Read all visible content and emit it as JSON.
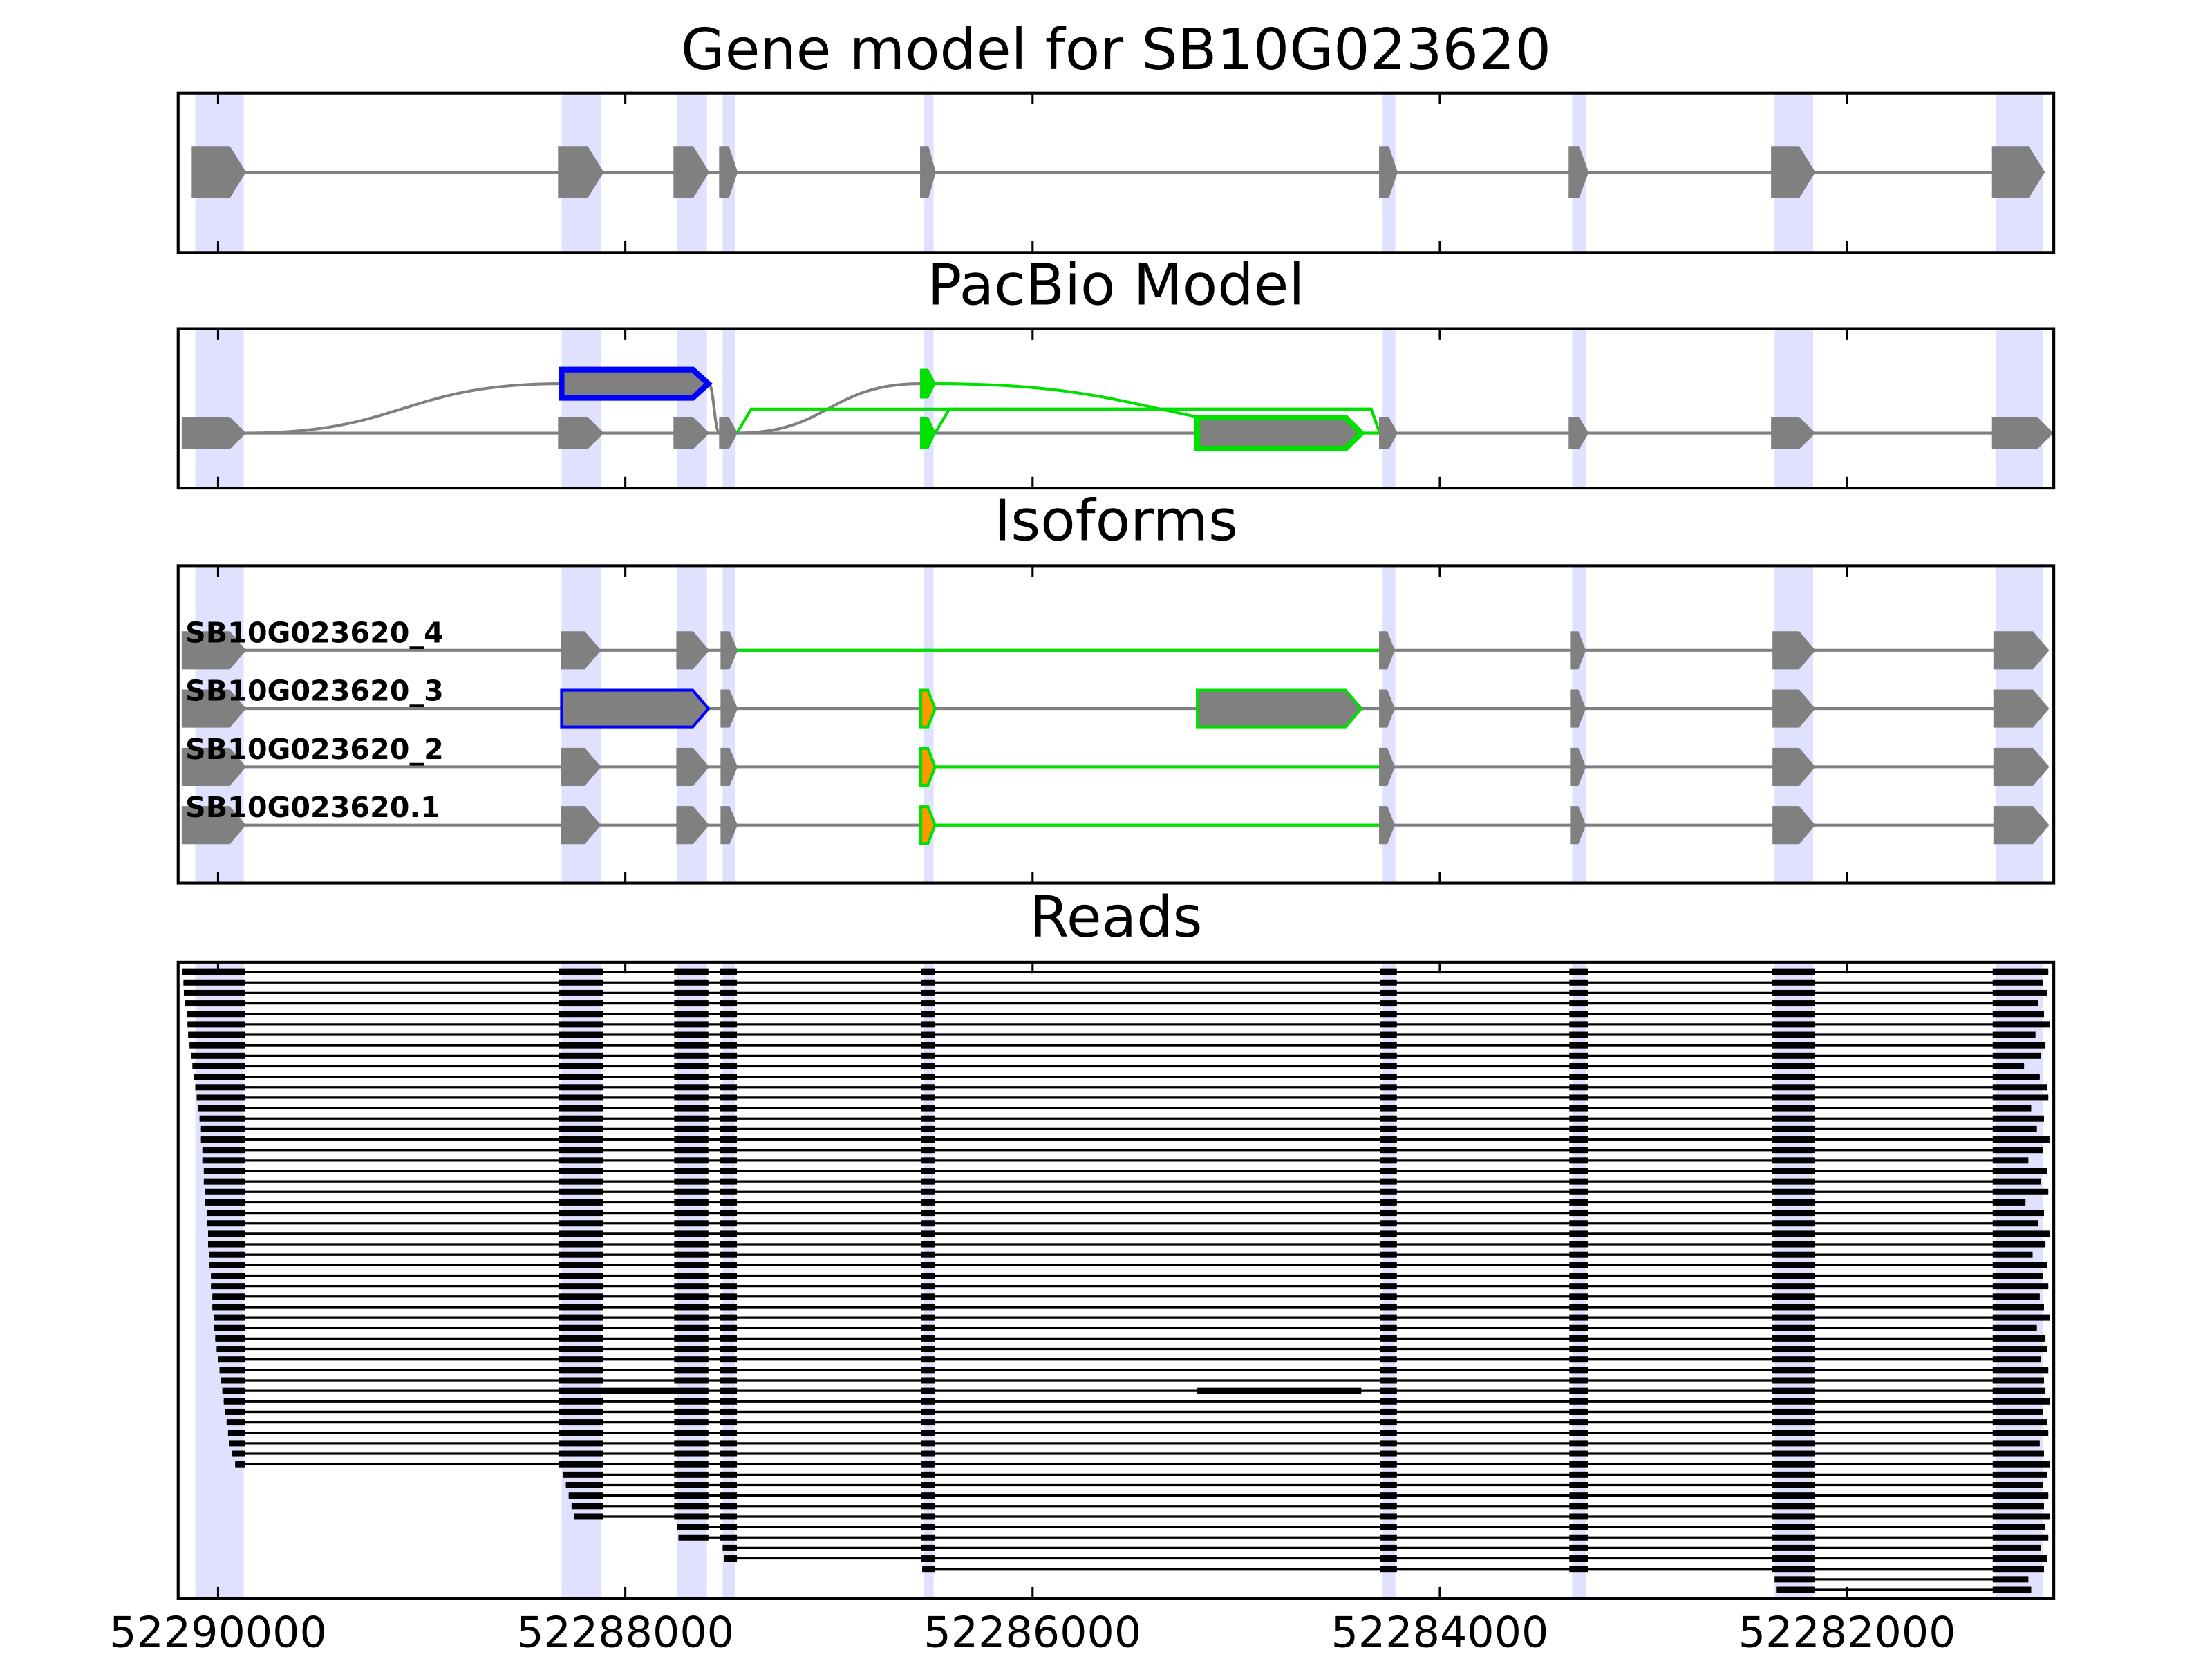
{
  "chart_data": {
    "type": "gene_track",
    "xlim": [
      52290196,
      52280985
    ],
    "xticks": [
      52290000,
      52288000,
      52286000,
      52284000,
      52282000
    ],
    "exon_color": "#808080",
    "band_color": "#e0e0ff",
    "read_color": "#000000",
    "gene_model": {
      "title": "Gene model for SB10G023620",
      "exons": [
        {
          "start": 52290126,
          "end": 52289867
        },
        {
          "start": 52288327,
          "end": 52288110
        },
        {
          "start": 52287760,
          "end": 52287592
        },
        {
          "start": 52287536,
          "end": 52287452
        },
        {
          "start": 52286549,
          "end": 52286479
        },
        {
          "start": 52284295,
          "end": 52284211
        },
        {
          "start": 52283364,
          "end": 52283273
        },
        {
          "start": 52282370,
          "end": 52282160
        },
        {
          "start": 52281285,
          "end": 52281033
        }
      ]
    },
    "pacbio": {
      "title": "PacBio Model",
      "exons": [
        {
          "start": 52290175,
          "end": 52289867,
          "row": 0
        },
        {
          "start": 52288327,
          "end": 52288110,
          "row": 0
        },
        {
          "start": 52287760,
          "end": 52287592,
          "row": 0
        },
        {
          "start": 52287536,
          "end": 52287452,
          "row": 0
        },
        {
          "start": 52286549,
          "end": 52286479,
          "row": 0,
          "fill": "#00e000",
          "edge": "#00e000"
        },
        {
          "start": 52285191,
          "end": 52284386,
          "row": 0,
          "edge": "#00e000"
        },
        {
          "start": 52284295,
          "end": 52284211,
          "row": 0
        },
        {
          "start": 52283364,
          "end": 52283273,
          "row": 0
        },
        {
          "start": 52282370,
          "end": 52282160,
          "row": 0
        },
        {
          "start": 52281285,
          "end": 52280991,
          "row": 0
        },
        {
          "start": 52288313,
          "end": 52287592,
          "row": 1,
          "edge": "#0000ff"
        },
        {
          "start": 52286549,
          "end": 52286479,
          "row": 1,
          "fill": "#00e000",
          "edge": "#00e000"
        }
      ],
      "junctions": [
        {
          "from": 52289867,
          "from_row": 0,
          "to": 52288313,
          "to_row": 1,
          "color": "#808080"
        },
        {
          "from": 52287592,
          "from_row": 1,
          "to": 52287536,
          "to_row": 0,
          "color": "#808080"
        },
        {
          "from": 52287452,
          "from_row": 0,
          "to": 52286549,
          "to_row": 1,
          "color": "#808080"
        },
        {
          "from": 52286479,
          "from_row": 1,
          "to": 52284295,
          "to_row": 0,
          "color": "#00e000"
        },
        {
          "from": 52287452,
          "from_row": 0,
          "to": 52284295,
          "to_row": 0,
          "color": "#00e000"
        },
        {
          "from": 52286479,
          "from_row": 0,
          "to": 52284295,
          "to_row": 0,
          "color": "#00e000"
        }
      ]
    },
    "isoforms": {
      "title": "Isoforms",
      "novel_color": "#00e000",
      "items": [
        {
          "name": "SB10G023620_4",
          "exons": [
            {
              "start": 52290175,
              "end": 52289867
            },
            {
              "start": 52288313,
              "end": 52288124
            },
            {
              "start": 52287746,
              "end": 52287592
            },
            {
              "start": 52287529,
              "end": 52287452
            },
            {
              "start": 52284295,
              "end": 52284225
            },
            {
              "start": 52283357,
              "end": 52283287
            },
            {
              "start": 52282363,
              "end": 52282160
            },
            {
              "start": 52281278,
              "end": 52281012
            }
          ],
          "novel": [
            [
              52287452,
              52284295
            ]
          ]
        },
        {
          "name": "SB10G023620_3",
          "exons": [
            {
              "start": 52290175,
              "end": 52289867
            },
            {
              "start": 52288313,
              "end": 52287592,
              "edge": "#0000ff"
            },
            {
              "start": 52287529,
              "end": 52287452
            },
            {
              "start": 52286549,
              "end": 52286479,
              "fill": "#ff9900",
              "edge": "#00e000"
            },
            {
              "start": 52285191,
              "end": 52284386,
              "edge": "#00e000"
            },
            {
              "start": 52284295,
              "end": 52284225
            },
            {
              "start": 52283357,
              "end": 52283287
            },
            {
              "start": 52282363,
              "end": 52282160
            },
            {
              "start": 52281278,
              "end": 52281012
            }
          ],
          "novel": []
        },
        {
          "name": "SB10G023620_2",
          "exons": [
            {
              "start": 52290175,
              "end": 52289867
            },
            {
              "start": 52288313,
              "end": 52288124
            },
            {
              "start": 52287746,
              "end": 52287592
            },
            {
              "start": 52287529,
              "end": 52287452
            },
            {
              "start": 52286549,
              "end": 52286479,
              "fill": "#ff9900",
              "edge": "#00e000"
            },
            {
              "start": 52284295,
              "end": 52284225
            },
            {
              "start": 52283357,
              "end": 52283287
            },
            {
              "start": 52282363,
              "end": 52282160
            },
            {
              "start": 52281278,
              "end": 52281012
            }
          ],
          "novel": [
            [
              52286479,
              52284295
            ]
          ]
        },
        {
          "name": "SB10G023620.1",
          "exons": [
            {
              "start": 52290175,
              "end": 52289867
            },
            {
              "start": 52288313,
              "end": 52288124
            },
            {
              "start": 52287746,
              "end": 52287592
            },
            {
              "start": 52287529,
              "end": 52287452
            },
            {
              "start": 52286549,
              "end": 52286479,
              "fill": "#ff9900",
              "edge": "#00e000"
            },
            {
              "start": 52284295,
              "end": 52284225
            },
            {
              "start": 52283357,
              "end": 52283287
            },
            {
              "start": 52282363,
              "end": 52282160
            },
            {
              "start": 52281278,
              "end": 52281012
            }
          ],
          "novel": [
            [
              52286479,
              52284295
            ]
          ]
        }
      ]
    },
    "reads": {
      "title": "Reads",
      "items": [
        {
          "start": 52290175,
          "end": 52281012
        },
        {
          "start": 52290170,
          "end": 52281040
        },
        {
          "start": 52290168,
          "end": 52281019
        },
        {
          "start": 52290161,
          "end": 52281061
        },
        {
          "start": 52290154,
          "end": 52281033
        },
        {
          "start": 52290150,
          "end": 52281005
        },
        {
          "start": 52290147,
          "end": 52281075
        },
        {
          "start": 52290140,
          "end": 52281026
        },
        {
          "start": 52290133,
          "end": 52281047
        },
        {
          "start": 52290126,
          "end": 52281131
        },
        {
          "start": 52290119,
          "end": 52281054
        },
        {
          "start": 52290112,
          "end": 52281019
        },
        {
          "start": 52290105,
          "end": 52281012
        },
        {
          "start": 52290098,
          "end": 52281096
        },
        {
          "start": 52290091,
          "end": 52281033
        },
        {
          "start": 52290084,
          "end": 52281068
        },
        {
          "start": 52290084,
          "end": 52281005
        },
        {
          "start": 52290077,
          "end": 52281040
        },
        {
          "start": 52290077,
          "end": 52281110
        },
        {
          "start": 52290070,
          "end": 52281019
        },
        {
          "start": 52290070,
          "end": 52281047
        },
        {
          "start": 52290063,
          "end": 52281012
        },
        {
          "start": 52290063,
          "end": 52281124
        },
        {
          "start": 52290056,
          "end": 52281033
        },
        {
          "start": 52290056,
          "end": 52281061
        },
        {
          "start": 52290049,
          "end": 52281005
        },
        {
          "start": 52290049,
          "end": 52281026
        },
        {
          "start": 52290042,
          "end": 52281089
        },
        {
          "start": 52290042,
          "end": 52281019
        },
        {
          "start": 52290035,
          "end": 52281040
        },
        {
          "start": 52290035,
          "end": 52281012
        },
        {
          "start": 52290028,
          "end": 52281054
        },
        {
          "start": 52290028,
          "end": 52281033
        },
        {
          "start": 52290021,
          "end": 52281005
        },
        {
          "start": 52290021,
          "end": 52281068
        },
        {
          "start": 52290014,
          "end": 52281026
        },
        {
          "start": 52290007,
          "end": 52281019
        },
        {
          "start": 52290000,
          "end": 52281047
        },
        {
          "start": 52289993,
          "end": 52281012
        },
        {
          "start": 52289986,
          "end": 52281033
        },
        {
          "start": 52289979,
          "end": 52281026,
          "exons": [
            {
              "start": 52290126,
              "end": 52289867
            },
            {
              "start": 52288327,
              "end": 52287592
            },
            {
              "start": 52287536,
              "end": 52287452
            },
            {
              "start": 52286549,
              "end": 52286479
            },
            {
              "start": 52285191,
              "end": 52284386
            },
            {
              "start": 52284295,
              "end": 52284211
            },
            {
              "start": 52283364,
              "end": 52283273
            },
            {
              "start": 52282370,
              "end": 52282160
            },
            {
              "start": 52281285,
              "end": 52281033
            }
          ]
        },
        {
          "start": 52289972,
          "end": 52281005
        },
        {
          "start": 52289965,
          "end": 52281040
        },
        {
          "start": 52289958,
          "end": 52281019
        },
        {
          "start": 52289951,
          "end": 52281012
        },
        {
          "start": 52289944,
          "end": 52281054
        },
        {
          "start": 52289930,
          "end": 52281033
        },
        {
          "start": 52289916,
          "end": 52281005
        },
        {
          "start": 52288306,
          "end": 52281019
        },
        {
          "start": 52288292,
          "end": 52281040
        },
        {
          "start": 52288278,
          "end": 52281012
        },
        {
          "start": 52288264,
          "end": 52281033
        },
        {
          "start": 52288250,
          "end": 52281005
        },
        {
          "start": 52287746,
          "end": 52281026
        },
        {
          "start": 52287739,
          "end": 52281012
        },
        {
          "start": 52287522,
          "end": 52281047
        },
        {
          "start": 52287515,
          "end": 52281019
        },
        {
          "start": 52286542,
          "end": 52281033
        },
        {
          "start": 52282356,
          "end": 52281110
        },
        {
          "start": 52282349,
          "end": 52281096
        }
      ]
    }
  }
}
